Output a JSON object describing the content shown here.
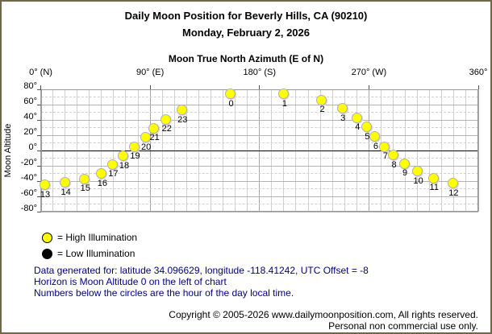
{
  "header": {
    "title": "Daily Moon Position for Beverly Hills, CA (90210)",
    "subtitle": "Monday, February 2, 2026"
  },
  "chart_data": {
    "type": "scatter",
    "title": "Daily Moon Position for Beverly Hills, CA (90210)",
    "xlabel": "Moon True North Azimuth (E of N)",
    "ylabel": "Moon Altitude",
    "xlim": [
      0,
      360
    ],
    "ylim": [
      -80,
      80
    ],
    "grid": "on",
    "legend_position": "bottom-left",
    "x_ticks": [
      {
        "value": 0,
        "label": "0° (N)"
      },
      {
        "value": 90,
        "label": "90° (E)"
      },
      {
        "value": 180,
        "label": "180° (S)"
      },
      {
        "value": 270,
        "label": "270° (W)"
      },
      {
        "value": 360,
        "label": "360°"
      }
    ],
    "y_ticks": [
      {
        "value": 80,
        "label": "80°"
      },
      {
        "value": 60,
        "label": "60°"
      },
      {
        "value": 40,
        "label": "40°"
      },
      {
        "value": 20,
        "label": "20°"
      },
      {
        "value": 0,
        "label": "0°"
      },
      {
        "value": -20,
        "label": "-20°"
      },
      {
        "value": -40,
        "label": "-40°"
      },
      {
        "value": -60,
        "label": "-60°"
      },
      {
        "value": -80,
        "label": "-80°"
      }
    ],
    "minor_grid_step_deg": 10,
    "horizon_altitude": 0,
    "points": [
      {
        "hour": 0,
        "azimuth": 156,
        "altitude": 74,
        "illumination": "high"
      },
      {
        "hour": 1,
        "azimuth": 200,
        "altitude": 74,
        "illumination": "high"
      },
      {
        "hour": 2,
        "azimuth": 231,
        "altitude": 66,
        "illumination": "high"
      },
      {
        "hour": 3,
        "azimuth": 248,
        "altitude": 55,
        "illumination": "high"
      },
      {
        "hour": 4,
        "azimuth": 260,
        "altitude": 43,
        "illumination": "high"
      },
      {
        "hour": 5,
        "azimuth": 268,
        "altitude": 31,
        "illumination": "high"
      },
      {
        "hour": 6,
        "azimuth": 275,
        "altitude": 18,
        "illumination": "high"
      },
      {
        "hour": 7,
        "azimuth": 283,
        "altitude": 5,
        "illumination": "high"
      },
      {
        "hour": 8,
        "azimuth": 290,
        "altitude": -6,
        "illumination": "high"
      },
      {
        "hour": 9,
        "azimuth": 299,
        "altitude": -17,
        "illumination": "high"
      },
      {
        "hour": 10,
        "azimuth": 310,
        "altitude": -27,
        "illumination": "high"
      },
      {
        "hour": 11,
        "azimuth": 323,
        "altitude": -36,
        "illumination": "high"
      },
      {
        "hour": 12,
        "azimuth": 339,
        "altitude": -43,
        "illumination": "high"
      },
      {
        "hour": 13,
        "azimuth": 3,
        "altitude": -45,
        "illumination": "high"
      },
      {
        "hour": 14,
        "azimuth": 20,
        "altitude": -42,
        "illumination": "high"
      },
      {
        "hour": 15,
        "azimuth": 36,
        "altitude": -37,
        "illumination": "high"
      },
      {
        "hour": 16,
        "azimuth": 50,
        "altitude": -30,
        "illumination": "high"
      },
      {
        "hour": 17,
        "azimuth": 59,
        "altitude": -18,
        "illumination": "high"
      },
      {
        "hour": 18,
        "azimuth": 68,
        "altitude": -7,
        "illumination": "high"
      },
      {
        "hour": 19,
        "azimuth": 77,
        "altitude": 5,
        "illumination": "high"
      },
      {
        "hour": 20,
        "azimuth": 86,
        "altitude": 17,
        "illumination": "high"
      },
      {
        "hour": 21,
        "azimuth": 93,
        "altitude": 29,
        "illumination": "high"
      },
      {
        "hour": 22,
        "azimuth": 103,
        "altitude": 41,
        "illumination": "high"
      },
      {
        "hour": 23,
        "azimuth": 116,
        "altitude": 53,
        "illumination": "high"
      }
    ]
  },
  "legend": {
    "items": [
      {
        "key": "high",
        "label": "= High Illumination",
        "color": "#ffff00"
      },
      {
        "key": "low",
        "label": "= Low Illumination",
        "color": "#000000"
      }
    ]
  },
  "footer": {
    "lines": [
      "Data generated for: latitude 34.096629, longitude -118.41242, UTC Offset = -8",
      "Horizon is Moon Altitude 0 on the left of chart",
      "Numbers below the circles are the hour of the day local time."
    ]
  },
  "copyright": {
    "line1": "Copyright © 2005-2026 www.dailymoonposition.com, All rights reserved.",
    "line2": "Personal non commercial use only."
  },
  "colors": {
    "background": "#ffffff",
    "page_border": "#6e6848",
    "footer_text": "#000080",
    "grid_major_h": "#b4b4b4",
    "grid_minor_h": "#d0d0d0",
    "grid_major_v": "#a8a8a8",
    "grid_minor_v": "#d0d0d0",
    "plot_border": "#999999",
    "horizon": "#000000",
    "point_high": "#ffff00",
    "point_low": "#000000",
    "point_outline": "#b0b0b0"
  }
}
